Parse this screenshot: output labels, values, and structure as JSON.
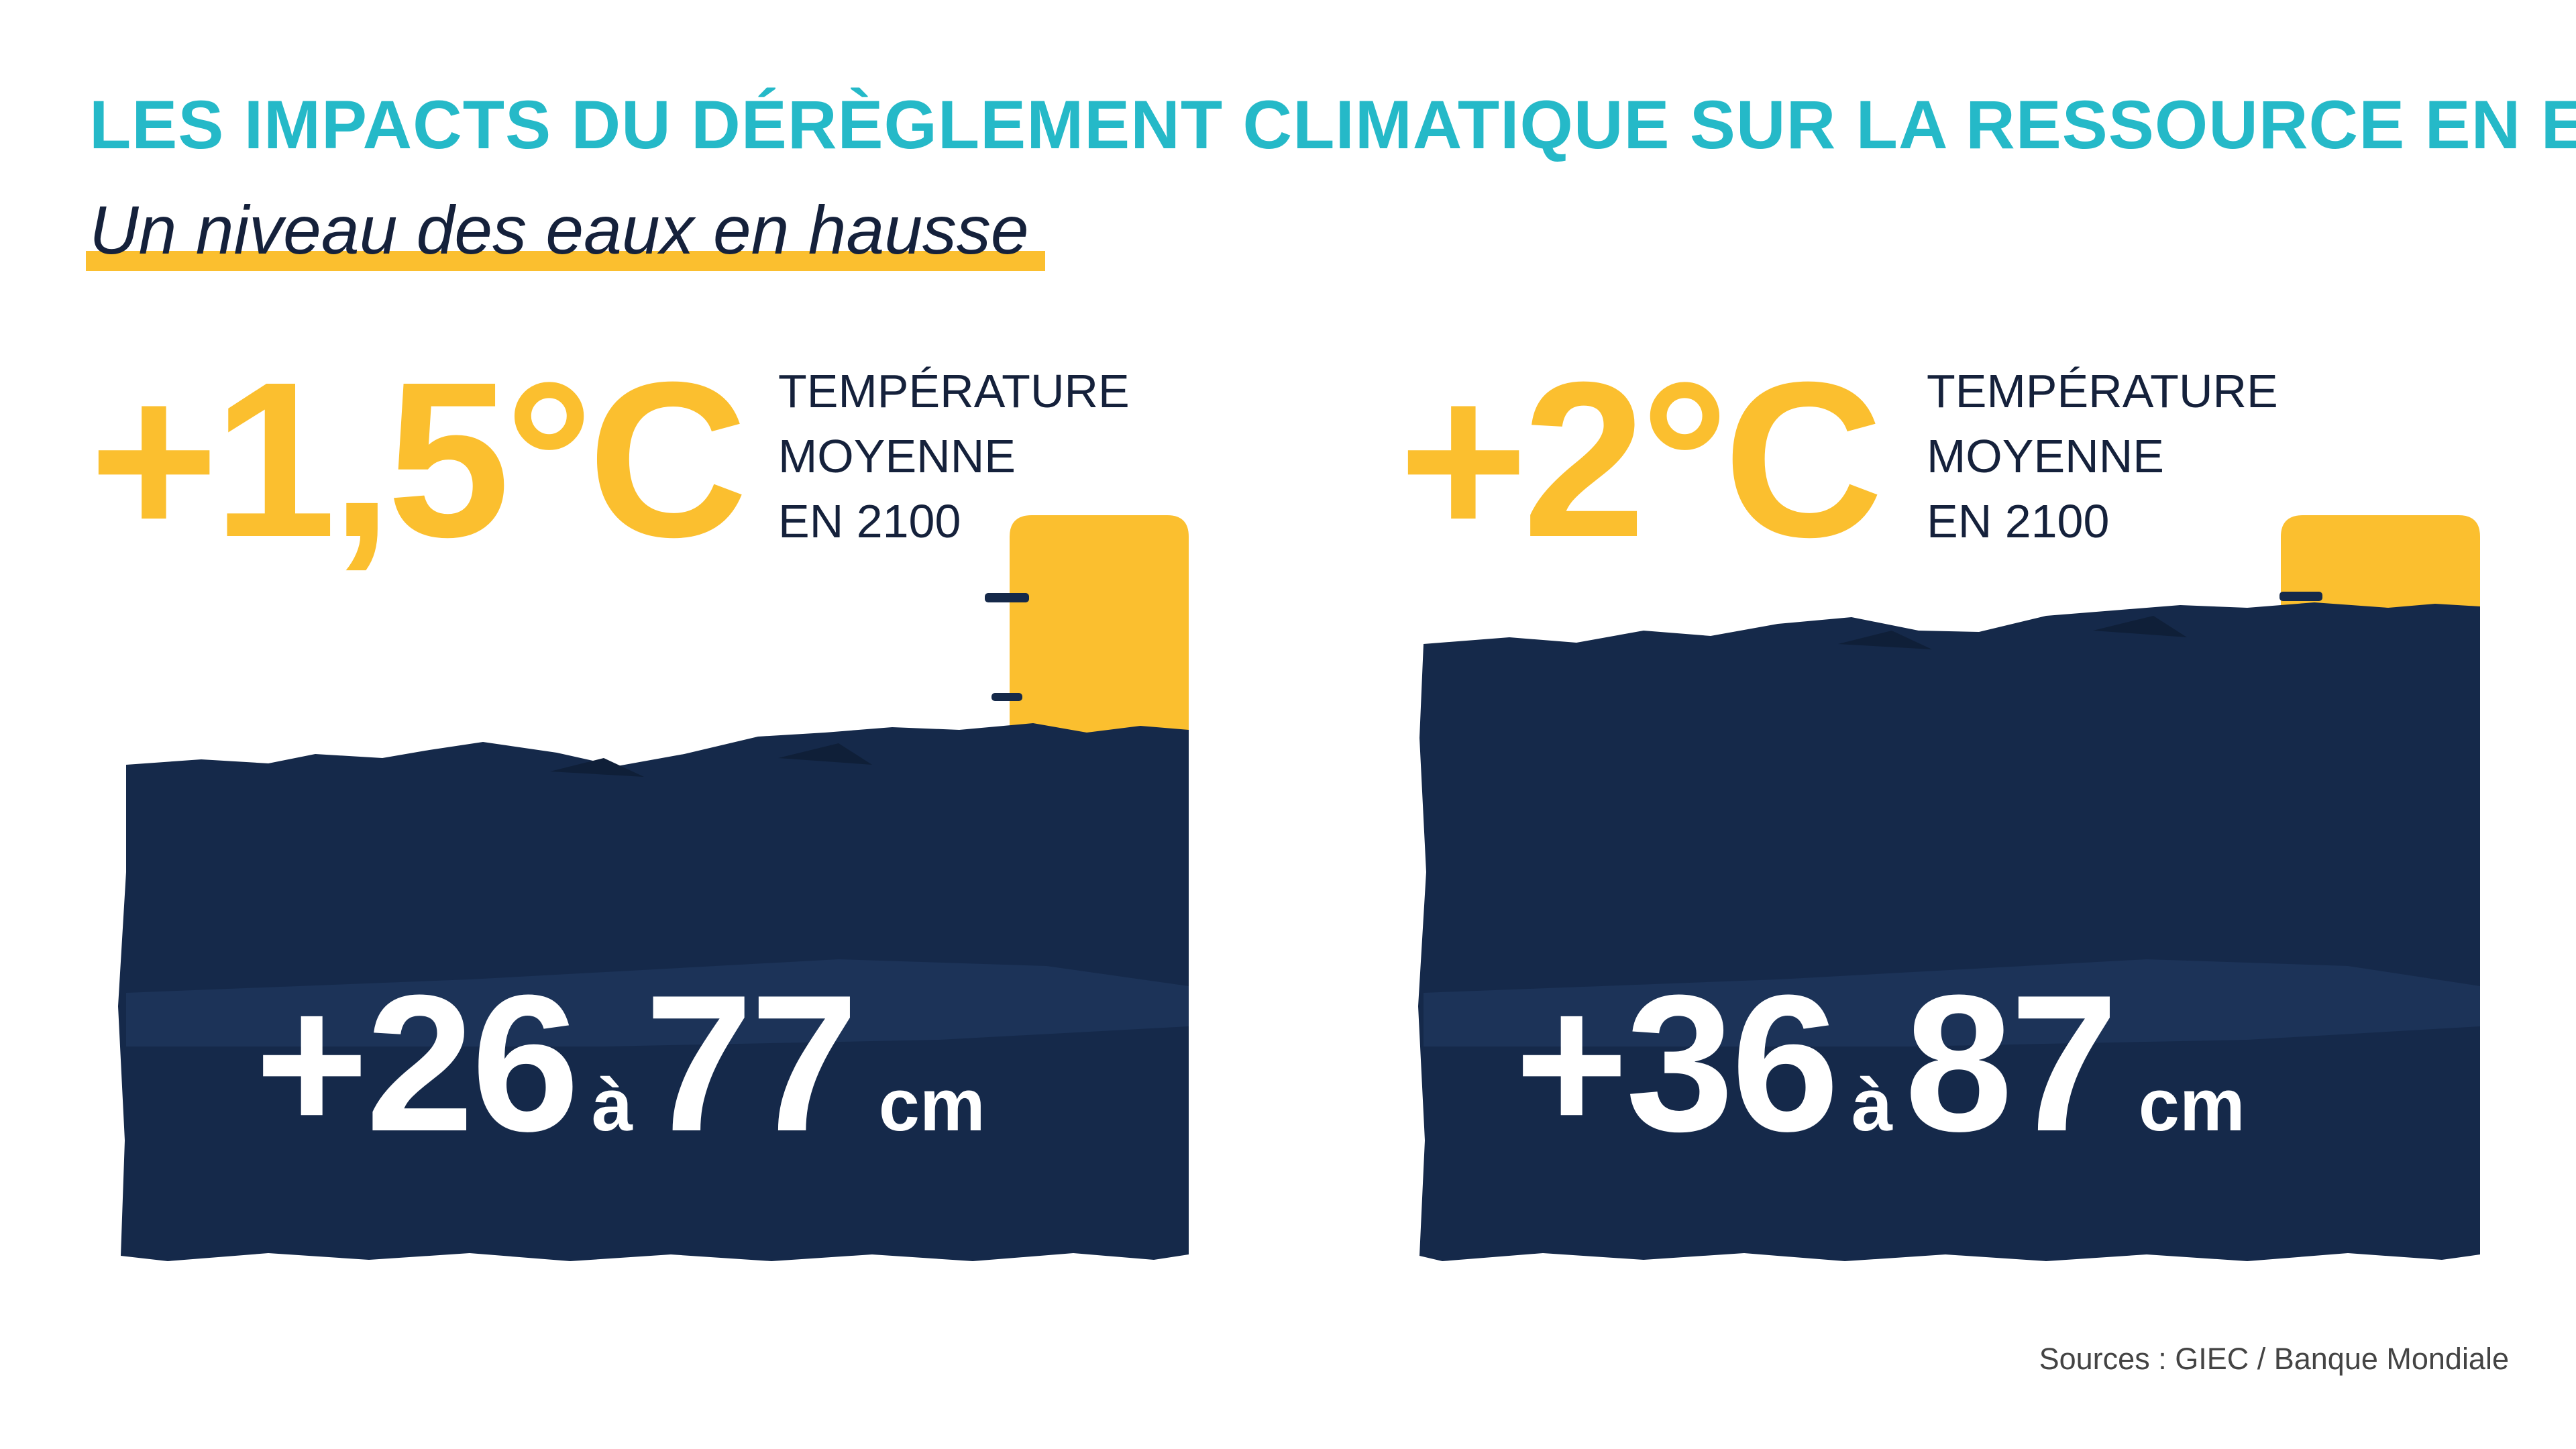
{
  "header": {
    "title": "LES IMPACTS DU DÉRÈGLEMENT CLIMATIQUE SUR LA RESSOURCE EN EAU",
    "subtitle": "Un niveau des eaux en hausse"
  },
  "scenarios": [
    {
      "temperature": "+1,5°C",
      "description": [
        "TEMPÉRATURE",
        "MOYENNE",
        "EN 2100"
      ],
      "rise_min": "+26",
      "separator": "à",
      "rise_max": "77",
      "unit": "cm"
    },
    {
      "temperature": "+2°C",
      "description": [
        "TEMPÉRATURE",
        "MOYENNE",
        "EN 2100"
      ],
      "rise_min": "+36",
      "separator": "à",
      "rise_max": "87",
      "unit": "cm"
    }
  ],
  "footer": {
    "sources": "Sources : GIEC / Banque Mondiale"
  },
  "colors": {
    "title": "#25b9c8",
    "accent_yellow": "#fbbf2f",
    "water_navy": "#15294a",
    "text_dark": "#15213b"
  }
}
